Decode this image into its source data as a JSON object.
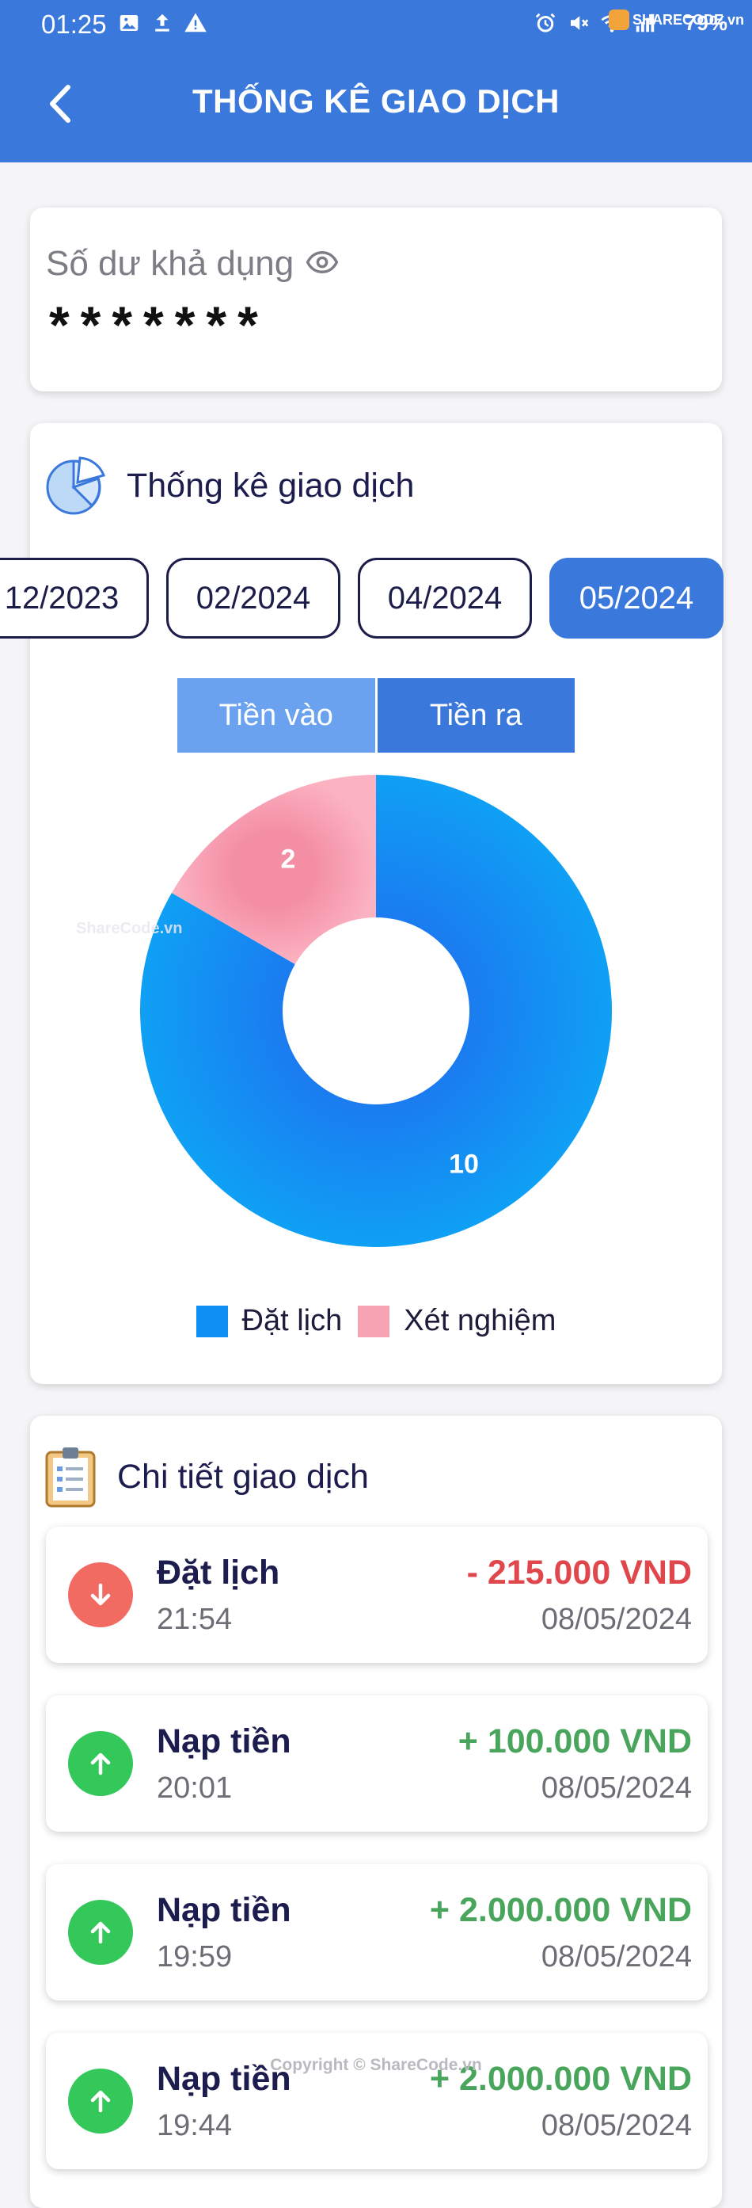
{
  "status_bar": {
    "time": "01:25",
    "battery": "79%",
    "watermark": "SHARECODE.vn"
  },
  "header": {
    "title": "THỐNG KÊ GIAO DỊCH"
  },
  "balance": {
    "label": "Số dư khả dụng",
    "value": "*******"
  },
  "stats": {
    "title": "Thống kê giao dịch",
    "months": [
      {
        "label": "12/2023",
        "active": false
      },
      {
        "label": "02/2024",
        "active": false
      },
      {
        "label": "04/2024",
        "active": false
      },
      {
        "label": "05/2024",
        "active": true
      }
    ],
    "toggle": {
      "in_label": "Tiền vào",
      "out_label": "Tiền ra",
      "selected": "Tiền ra"
    }
  },
  "chart_data": {
    "type": "pie",
    "donut": true,
    "categories": [
      "Đặt lịch",
      "Xét nghiệm"
    ],
    "values": [
      10,
      2
    ],
    "colors": [
      "#0f8ff3",
      "#f7a3b4"
    ],
    "legend_position": "bottom"
  },
  "details": {
    "title": "Chi tiết giao dịch",
    "transactions": [
      {
        "name": "Đặt lịch",
        "time": "21:54",
        "amount": "- 215.000 VND",
        "date": "08/05/2024",
        "direction": "out"
      },
      {
        "name": "Nạp tiền",
        "time": "20:01",
        "amount": "+ 100.000 VND",
        "date": "08/05/2024",
        "direction": "in"
      },
      {
        "name": "Nạp tiền",
        "time": "19:59",
        "amount": "+ 2.000.000 VND",
        "date": "08/05/2024",
        "direction": "in"
      },
      {
        "name": "Nạp tiền",
        "time": "19:44",
        "amount": "+ 2.000.000 VND",
        "date": "08/05/2024",
        "direction": "in"
      }
    ]
  },
  "watermarks": {
    "middle": "ShareCode.vn",
    "bottom": "Copyright © ShareCode.vn"
  }
}
